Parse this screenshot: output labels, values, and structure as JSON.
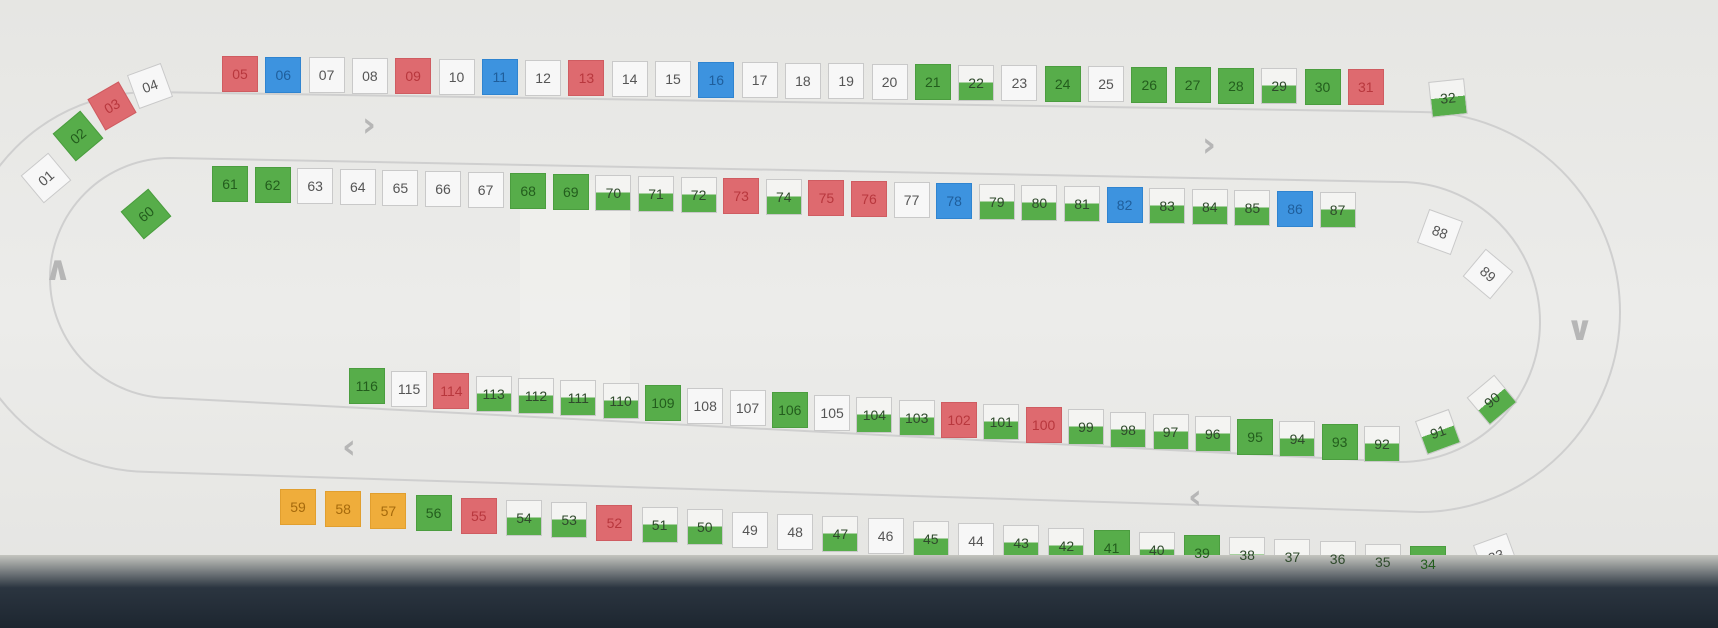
{
  "colors": {
    "free": "#f7f7f7",
    "red": "#de6a6f",
    "blue": "#3d93df",
    "green": "#57ad4a",
    "orange": "#efad3b",
    "track_line": "#cfcfcf"
  },
  "arrows": {
    "top": "›",
    "right_top": "›",
    "right": "∨",
    "bottom_right": "‹",
    "bottom_left": "‹",
    "left": "∧"
  },
  "outer_top": [
    {
      "label": "01",
      "status": "free"
    },
    {
      "label": "02",
      "status": "green"
    },
    {
      "label": "03",
      "status": "red"
    },
    {
      "label": "04",
      "status": "free"
    },
    {
      "label": "05",
      "status": "red"
    },
    {
      "label": "06",
      "status": "blue"
    },
    {
      "label": "07",
      "status": "free"
    },
    {
      "label": "08",
      "status": "free"
    },
    {
      "label": "09",
      "status": "red"
    },
    {
      "label": "10",
      "status": "free"
    },
    {
      "label": "11",
      "status": "blue"
    },
    {
      "label": "12",
      "status": "free"
    },
    {
      "label": "13",
      "status": "red"
    },
    {
      "label": "14",
      "status": "free"
    },
    {
      "label": "15",
      "status": "free"
    },
    {
      "label": "16",
      "status": "blue"
    },
    {
      "label": "17",
      "status": "free"
    },
    {
      "label": "18",
      "status": "free"
    },
    {
      "label": "19",
      "status": "free"
    },
    {
      "label": "20",
      "status": "free"
    },
    {
      "label": "21",
      "status": "green"
    },
    {
      "label": "22",
      "status": "partial"
    },
    {
      "label": "23",
      "status": "free"
    },
    {
      "label": "24",
      "status": "green"
    },
    {
      "label": "25",
      "status": "free"
    },
    {
      "label": "26",
      "status": "green"
    },
    {
      "label": "27",
      "status": "green"
    },
    {
      "label": "28",
      "status": "green"
    },
    {
      "label": "29",
      "status": "partial"
    },
    {
      "label": "30",
      "status": "green"
    },
    {
      "label": "31",
      "status": "red"
    },
    {
      "label": "32",
      "status": "partial"
    }
  ],
  "outer_bottom": [
    {
      "label": "33",
      "status": "free"
    },
    {
      "label": "34",
      "status": "green"
    },
    {
      "label": "35",
      "status": "partial"
    },
    {
      "label": "36",
      "status": "partial"
    },
    {
      "label": "37",
      "status": "partial"
    },
    {
      "label": "38",
      "status": "partial"
    },
    {
      "label": "39",
      "status": "green"
    },
    {
      "label": "40",
      "status": "partial"
    },
    {
      "label": "41",
      "status": "green"
    },
    {
      "label": "42",
      "status": "partial"
    },
    {
      "label": "43",
      "status": "partial"
    },
    {
      "label": "44",
      "status": "free"
    },
    {
      "label": "45",
      "status": "partial"
    },
    {
      "label": "46",
      "status": "free"
    },
    {
      "label": "47",
      "status": "partial"
    },
    {
      "label": "48",
      "status": "free"
    },
    {
      "label": "49",
      "status": "free"
    },
    {
      "label": "50",
      "status": "partial"
    },
    {
      "label": "51",
      "status": "partial"
    },
    {
      "label": "52",
      "status": "red"
    },
    {
      "label": "53",
      "status": "partial"
    },
    {
      "label": "54",
      "status": "partial"
    },
    {
      "label": "55",
      "status": "red"
    },
    {
      "label": "56",
      "status": "green"
    },
    {
      "label": "57",
      "status": "orange"
    },
    {
      "label": "58",
      "status": "orange"
    },
    {
      "label": "59",
      "status": "orange"
    }
  ],
  "inner_left": [
    {
      "label": "60",
      "status": "green"
    }
  ],
  "inner_top": [
    {
      "label": "61",
      "status": "green"
    },
    {
      "label": "62",
      "status": "green"
    },
    {
      "label": "63",
      "status": "free"
    },
    {
      "label": "64",
      "status": "free"
    },
    {
      "label": "65",
      "status": "free"
    },
    {
      "label": "66",
      "status": "free"
    },
    {
      "label": "67",
      "status": "free"
    },
    {
      "label": "68",
      "status": "green"
    },
    {
      "label": "69",
      "status": "green"
    },
    {
      "label": "70",
      "status": "partial"
    },
    {
      "label": "71",
      "status": "partial"
    },
    {
      "label": "72",
      "status": "partial"
    },
    {
      "label": "73",
      "status": "red"
    },
    {
      "label": "74",
      "status": "partial"
    },
    {
      "label": "75",
      "status": "red"
    },
    {
      "label": "76",
      "status": "red"
    },
    {
      "label": "77",
      "status": "free"
    },
    {
      "label": "78",
      "status": "blue"
    },
    {
      "label": "79",
      "status": "partial"
    },
    {
      "label": "80",
      "status": "partial"
    },
    {
      "label": "81",
      "status": "partial"
    },
    {
      "label": "82",
      "status": "blue"
    },
    {
      "label": "83",
      "status": "partial"
    },
    {
      "label": "84",
      "status": "partial"
    },
    {
      "label": "85",
      "status": "partial"
    },
    {
      "label": "86",
      "status": "blue"
    },
    {
      "label": "87",
      "status": "partial"
    },
    {
      "label": "88",
      "status": "free"
    },
    {
      "label": "89",
      "status": "free"
    },
    {
      "label": "90",
      "status": "partial"
    },
    {
      "label": "91",
      "status": "partial"
    }
  ],
  "inner_bottom": [
    {
      "label": "92",
      "status": "partial"
    },
    {
      "label": "93",
      "status": "green"
    },
    {
      "label": "94",
      "status": "partial"
    },
    {
      "label": "95",
      "status": "green"
    },
    {
      "label": "96",
      "status": "partial"
    },
    {
      "label": "97",
      "status": "partial"
    },
    {
      "label": "98",
      "status": "partial"
    },
    {
      "label": "99",
      "status": "partial"
    },
    {
      "label": "100",
      "status": "red"
    },
    {
      "label": "101",
      "status": "partial"
    },
    {
      "label": "102",
      "status": "red"
    },
    {
      "label": "103",
      "status": "partial"
    },
    {
      "label": "104",
      "status": "partial"
    },
    {
      "label": "105",
      "status": "free"
    },
    {
      "label": "106",
      "status": "green"
    },
    {
      "label": "107",
      "status": "free"
    },
    {
      "label": "108",
      "status": "free"
    },
    {
      "label": "109",
      "status": "green"
    },
    {
      "label": "110",
      "status": "partial"
    },
    {
      "label": "111",
      "status": "partial"
    },
    {
      "label": "112",
      "status": "partial"
    },
    {
      "label": "113",
      "status": "partial"
    },
    {
      "label": "114",
      "status": "red"
    },
    {
      "label": "115",
      "status": "free"
    },
    {
      "label": "116",
      "status": "green"
    }
  ]
}
